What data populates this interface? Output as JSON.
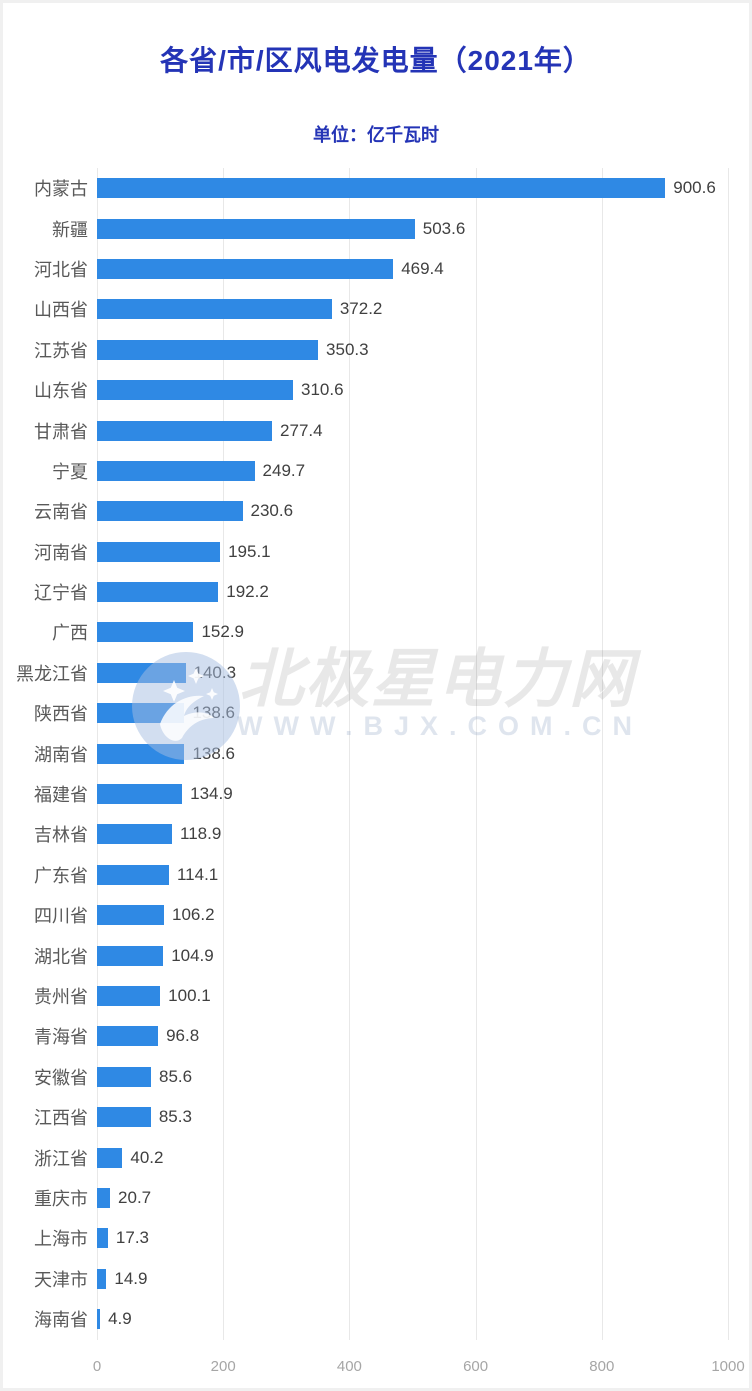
{
  "header": {
    "title": "各省/市/区风电发电量（2021年）",
    "subtitle": "单位：亿千瓦时"
  },
  "watermark": {
    "brand": "北极星电力网",
    "url": "WWW.BJX.COM.CN",
    "logo_icon": "star-circle-logo-icon"
  },
  "colors": {
    "bar": "#2f89e4",
    "title_text": "#2434b6",
    "category_label": "#595959",
    "value_label": "#404040",
    "axis_tick": "#a6a6a6",
    "gridline": "#e8e8e8"
  },
  "chart_data": {
    "type": "bar",
    "orientation": "horizontal",
    "title": "各省/市/区风电发电量（2021年）",
    "unit_label": "单位：亿千瓦时",
    "xlabel": "",
    "ylabel": "",
    "xlim": [
      0,
      1000
    ],
    "x_ticks": [
      0,
      200,
      400,
      600,
      800,
      1000
    ],
    "grid": true,
    "value_labels_shown": true,
    "categories": [
      "内蒙古",
      "新疆",
      "河北省",
      "山西省",
      "江苏省",
      "山东省",
      "甘肃省",
      "宁夏",
      "云南省",
      "河南省",
      "辽宁省",
      "广西",
      "黑龙江省",
      "陕西省",
      "湖南省",
      "福建省",
      "吉林省",
      "广东省",
      "四川省",
      "湖北省",
      "贵州省",
      "青海省",
      "安徽省",
      "江西省",
      "浙江省",
      "重庆市",
      "上海市",
      "天津市",
      "海南省"
    ],
    "values": [
      900.6,
      503.6,
      469.4,
      372.2,
      350.3,
      310.6,
      277.4,
      249.7,
      230.6,
      195.1,
      192.2,
      152.9,
      140.3,
      138.6,
      138.6,
      134.9,
      118.9,
      114.1,
      106.2,
      104.9,
      100.1,
      96.8,
      85.6,
      85.3,
      40.2,
      20.7,
      17.3,
      14.9,
      4.9
    ]
  }
}
